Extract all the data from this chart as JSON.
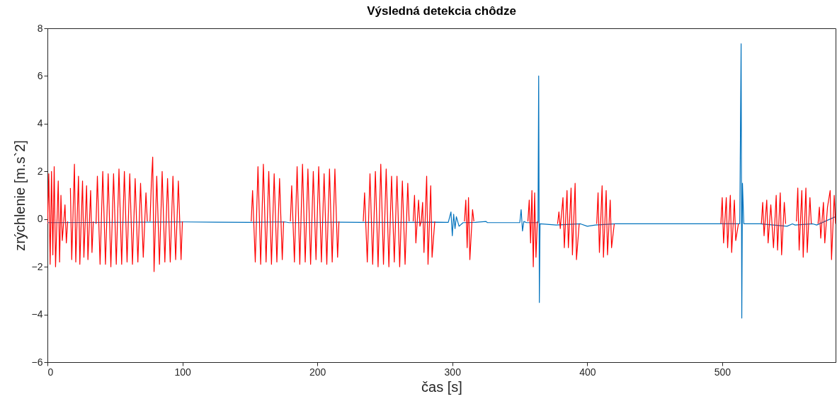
{
  "chart_data": {
    "type": "line",
    "title": "Výsledná detekcia chôdze",
    "xlabel": "čas [s]",
    "ylabel": "zrýchlenie [m.s`2]",
    "xlim": [
      0,
      584
    ],
    "xticks": [
      0,
      100,
      200,
      300,
      400,
      500
    ],
    "ylim": [
      -6,
      8
    ],
    "yticks": [
      -6,
      -4,
      -2,
      0,
      2,
      4,
      6,
      8
    ],
    "series": [
      {
        "color": "#0072bd",
        "x": [
          0,
          101,
          125,
          150,
          176,
          179,
          217,
          233,
          269,
          288,
          297,
          299,
          300,
          301,
          302,
          303,
          305,
          308,
          317,
          325,
          326,
          350,
          351,
          352,
          353,
          355,
          363.5,
          364,
          364.5,
          365,
          377,
          395,
          400,
          406,
          421,
          498,
          513,
          514,
          514.5,
          515,
          516,
          528,
          548,
          552,
          554,
          567,
          570,
          584
        ],
        "values": [
          -0.15,
          -0.12,
          -0.13,
          -0.14,
          -0.12,
          -0.15,
          -0.13,
          -0.14,
          -0.14,
          -0.13,
          -0.14,
          0.3,
          -0.7,
          0.2,
          -0.4,
          0.1,
          -0.3,
          -0.15,
          -0.14,
          -0.1,
          -0.15,
          -0.15,
          0.4,
          -0.5,
          -0.1,
          -0.15,
          -0.15,
          6.0,
          -3.5,
          -0.2,
          -0.25,
          -0.2,
          -0.3,
          -0.25,
          -0.2,
          -0.2,
          -0.2,
          7.35,
          -4.15,
          1.5,
          -0.2,
          -0.2,
          -0.3,
          -0.2,
          -0.25,
          -0.2,
          -0.25,
          0.1
        ]
      },
      {
        "color": "#ff0000",
        "x": [
          0,
          1,
          2,
          3,
          4,
          5,
          6,
          8,
          9,
          10,
          11,
          13,
          14,
          15,
          16,
          17,
          18,
          20,
          21,
          23,
          24,
          26,
          27,
          29,
          30,
          32,
          33,
          34,
          35,
          36,
          37,
          39,
          41,
          43,
          45,
          47,
          49,
          51,
          53,
          55,
          57,
          59,
          61,
          63,
          65,
          67,
          69,
          71,
          73,
          74,
          75,
          76,
          77,
          78,
          79,
          81,
          83,
          85,
          87,
          89,
          91,
          93,
          95,
          97,
          99,
          100,
          125,
          151,
          152,
          154,
          156,
          158,
          160,
          162,
          164,
          166,
          168,
          170,
          172,
          174,
          175,
          178,
          180,
          181,
          183,
          185,
          187,
          189,
          191,
          193,
          195,
          197,
          199,
          201,
          203,
          205,
          207,
          209,
          211,
          213,
          215,
          216,
          225,
          234,
          235,
          237,
          239,
          241,
          243,
          245,
          247,
          249,
          251,
          253,
          255,
          257,
          259,
          261,
          263,
          265,
          267,
          268,
          270,
          271,
          272,
          273,
          275,
          276,
          277,
          278,
          279,
          281,
          282,
          284,
          285,
          287,
          298,
          309,
          310,
          311,
          312,
          313,
          315,
          316,
          340,
          356,
          357,
          358,
          359,
          360,
          361,
          362,
          363,
          370,
          378,
          379,
          380,
          382,
          383,
          385,
          386,
          388,
          389,
          391,
          392,
          394,
          400,
          407,
          408,
          409,
          411,
          412,
          414,
          415,
          417,
          418,
          420,
          460,
          499,
          500,
          501,
          503,
          504,
          506,
          507,
          509,
          510,
          512,
          520,
          529,
          530,
          531,
          533,
          534,
          536,
          538,
          540,
          541,
          543,
          544,
          546,
          547,
          550,
          555,
          556,
          557,
          559,
          560,
          562,
          563,
          565,
          566,
          568,
          571,
          572,
          573,
          575,
          576,
          578,
          580,
          581,
          583,
          584
        ],
        "values": [
          -0.2,
          1.9,
          -1.9,
          2.0,
          -1.5,
          2.2,
          -2.0,
          1.6,
          -1.8,
          1.0,
          -0.9,
          0.6,
          -1.0,
          -0.1,
          null,
          1.3,
          -1.7,
          2.3,
          -1.8,
          1.8,
          -1.9,
          1.6,
          -1.6,
          1.4,
          -1.7,
          1.2,
          -1.4,
          -0.1,
          null,
          -0.2,
          1.8,
          -1.9,
          2.0,
          -1.9,
          1.9,
          -2.0,
          1.9,
          -1.9,
          2.1,
          -1.9,
          2.0,
          -1.8,
          1.9,
          -1.9,
          1.7,
          -1.8,
          1.5,
          -1.6,
          1.1,
          -0.1,
          null,
          -0.1,
          1.5,
          2.6,
          -2.2,
          1.8,
          -1.9,
          2.0,
          -1.8,
          1.7,
          -1.8,
          1.8,
          -1.7,
          1.6,
          -1.7,
          -0.1,
          null,
          -0.1,
          1.2,
          -1.8,
          2.2,
          -1.9,
          2.3,
          -1.8,
          2.0,
          -1.9,
          1.9,
          -1.8,
          1.7,
          -1.7,
          -0.1,
          null,
          -0.1,
          1.4,
          -1.8,
          2.2,
          -1.9,
          2.3,
          -1.8,
          2.1,
          -1.9,
          2.0,
          -1.7,
          2.2,
          -1.8,
          1.9,
          -1.9,
          2.1,
          -1.8,
          2.1,
          -1.6,
          -0.1,
          null,
          -0.1,
          1.1,
          -1.8,
          1.9,
          -1.9,
          2.0,
          -2.0,
          2.3,
          -1.9,
          2.1,
          -2.0,
          1.8,
          -1.8,
          1.8,
          -2.0,
          1.6,
          -1.9,
          1.5,
          -0.1,
          null,
          -0.1,
          1.0,
          -1.0,
          0.8,
          -0.3,
          -0.1,
          0.7,
          -1.4,
          1.8,
          -1.9,
          1.4,
          -1.6,
          -0.1,
          null,
          -0.1,
          0.8,
          -1.2,
          0.9,
          -1.7,
          0.4,
          -0.1,
          null,
          -0.1,
          0.8,
          -1.0,
          1.2,
          -2.0,
          1.1,
          -1.6,
          -0.1,
          null,
          -0.2,
          0.3,
          -0.4,
          0.9,
          -1.2,
          1.2,
          -1.2,
          1.3,
          -1.5,
          1.5,
          -1.7,
          -0.2,
          null,
          -0.2,
          1.1,
          -1.4,
          1.4,
          -1.6,
          1.2,
          -1.5,
          0.8,
          -1.2,
          -0.2,
          null,
          -0.2,
          0.9,
          -1.0,
          0.9,
          -1.2,
          1.0,
          -1.4,
          0.8,
          -0.9,
          -0.2,
          null,
          -0.2,
          0.7,
          -0.7,
          0.8,
          -1.0,
          0.6,
          -1.2,
          1.0,
          -1.3,
          1.1,
          -1.5,
          0.7,
          -0.2,
          null,
          -0.1,
          1.3,
          -1.3,
          1.2,
          -1.6,
          1.3,
          -1.4,
          0.9,
          -0.2,
          null,
          -0.2,
          0.5,
          -0.8,
          0.7,
          -1.0,
          0.5,
          1.2,
          -1.7,
          1.0,
          -0.2
        ]
      }
    ]
  }
}
